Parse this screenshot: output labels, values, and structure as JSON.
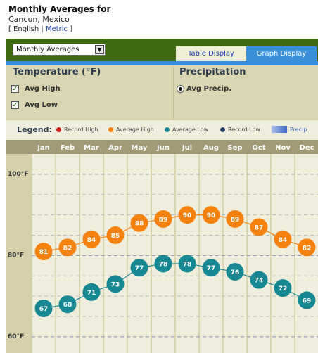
{
  "header": {
    "title": "Monthly Averages for",
    "location": "Cancun, Mexico",
    "units": {
      "open_bracket": "[",
      "english": "English",
      "separator": "|",
      "metric": "Metric",
      "close_bracket": "]"
    }
  },
  "toolbar": {
    "view_select_value": "Monthly Averages",
    "tabs": {
      "table": "Table Display",
      "graph": "Graph Display"
    }
  },
  "panels": {
    "temperature": {
      "heading": "Temperature (°F)",
      "avg_high": "Avg High",
      "avg_low": "Avg Low"
    },
    "precipitation": {
      "heading": "Precipitation",
      "avg_precip": "Avg Precip."
    }
  },
  "legend": {
    "title": "Legend:",
    "items": [
      "Record High",
      "Average High",
      "Average Low",
      "Record Low",
      "Precip"
    ]
  },
  "colors": {
    "record_high": "#c81e1e",
    "average_high": "#f5820f",
    "average_low": "#168893",
    "record_low": "#2f4766",
    "precip": "#3c66c4",
    "header_bar": "#3f6b10",
    "month_bar": "#a39a77"
  },
  "chart_data": {
    "type": "line",
    "categories": [
      "Jan",
      "Feb",
      "Mar",
      "Apr",
      "May",
      "Jun",
      "Jul",
      "Aug",
      "Sep",
      "Oct",
      "Nov",
      "Dec"
    ],
    "series": [
      {
        "name": "Average High",
        "values": [
          81,
          82,
          84,
          85,
          88,
          89,
          90,
          90,
          89,
          87,
          84,
          82
        ]
      },
      {
        "name": "Average Low",
        "values": [
          67,
          68,
          71,
          73,
          77,
          78,
          78,
          77,
          76,
          74,
          72,
          69
        ]
      }
    ],
    "y_ticks": [
      {
        "value": 100,
        "label": "100°F"
      },
      {
        "value": 80,
        "label": "80°F"
      },
      {
        "value": 60,
        "label": "60°F"
      }
    ],
    "ylim": [
      56,
      105
    ],
    "grid": true
  }
}
